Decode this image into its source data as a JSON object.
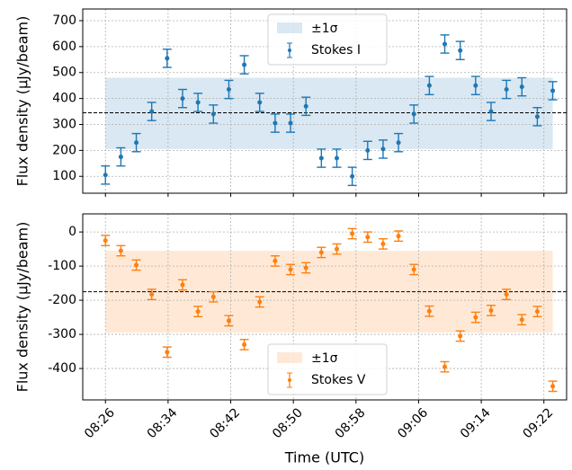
{
  "chart_data": [
    {
      "type": "errorbar",
      "ylabel": "Flux density (μJy/beam)",
      "x": [
        506,
        507.97,
        509.94,
        511.91,
        513.88,
        515.85,
        517.82,
        519.79,
        521.76,
        523.73,
        525.7,
        527.67,
        529.64,
        531.61,
        533.58,
        535.55,
        537.52,
        539.49,
        541.46,
        543.43,
        545.4,
        547.37,
        549.34,
        551.31,
        553.28,
        555.25,
        557.22,
        559.19,
        561.16,
        563.13
      ],
      "series": [
        {
          "name": "Stokes I",
          "color": "#1f77b4",
          "values": [
            105,
            175,
            230,
            350,
            555,
            400,
            385,
            340,
            435,
            530,
            385,
            305,
            305,
            370,
            170,
            170,
            100,
            200,
            205,
            230,
            340,
            450,
            610,
            585,
            450,
            350,
            435,
            445,
            330,
            430
          ],
          "errors": [
            35,
            35,
            35,
            35,
            35,
            35,
            35,
            35,
            35,
            35,
            35,
            35,
            35,
            35,
            35,
            35,
            35,
            35,
            35,
            35,
            35,
            35,
            35,
            35,
            35,
            35,
            35,
            35,
            35,
            35
          ]
        }
      ],
      "band": {
        "label": "±1σ",
        "lower": 205,
        "upper": 480,
        "color": "#1f77b4"
      },
      "mean": 345,
      "xlim": [
        503.1,
        564.9
      ],
      "ylim": [
        35,
        745
      ],
      "yticks": [
        100,
        200,
        300,
        400,
        500,
        600,
        700
      ],
      "legend": "upper center",
      "grid": true
    },
    {
      "type": "errorbar",
      "ylabel": "Flux density (μJy/beam)",
      "xlabel": "Time (UTC)",
      "x": [
        506,
        507.97,
        509.94,
        511.91,
        513.88,
        515.85,
        517.82,
        519.79,
        521.76,
        523.73,
        525.7,
        527.67,
        529.64,
        531.61,
        533.58,
        535.55,
        537.52,
        539.49,
        541.46,
        543.43,
        545.4,
        547.37,
        549.34,
        551.31,
        553.28,
        555.25,
        557.22,
        559.19,
        561.16,
        563.13
      ],
      "series": [
        {
          "name": "Stokes V",
          "color": "#ff7f0e",
          "values": [
            -25,
            -55,
            -97,
            -183,
            -352,
            -155,
            -233,
            -190,
            -260,
            -330,
            -205,
            -85,
            -110,
            -105,
            -60,
            -50,
            -5,
            -15,
            -35,
            -12,
            -110,
            -232,
            -395,
            -305,
            -250,
            -230,
            -183,
            -257,
            -233,
            -452
          ],
          "errors": [
            15,
            15,
            15,
            15,
            15,
            15,
            15,
            15,
            15,
            15,
            15,
            15,
            15,
            15,
            15,
            15,
            15,
            15,
            15,
            15,
            15,
            15,
            15,
            15,
            15,
            15,
            15,
            15,
            15,
            15
          ]
        }
      ],
      "band": {
        "label": "±1σ",
        "lower": -295,
        "upper": -55,
        "color": "#ff7f0e"
      },
      "mean": -175,
      "xlim": [
        503.1,
        564.9
      ],
      "ylim": [
        -492,
        53
      ],
      "yticks": [
        -400,
        -300,
        -200,
        -100,
        0
      ],
      "xticks": [
        {
          "value": 506,
          "label": "08:26"
        },
        {
          "value": 514,
          "label": "08:34"
        },
        {
          "value": 522,
          "label": "08:42"
        },
        {
          "value": 530,
          "label": "08:50"
        },
        {
          "value": 538,
          "label": "08:58"
        },
        {
          "value": 546,
          "label": "09:06"
        },
        {
          "value": 554,
          "label": "09:14"
        },
        {
          "value": 562,
          "label": "09:22"
        }
      ],
      "legend": "lower center",
      "grid": true
    }
  ]
}
